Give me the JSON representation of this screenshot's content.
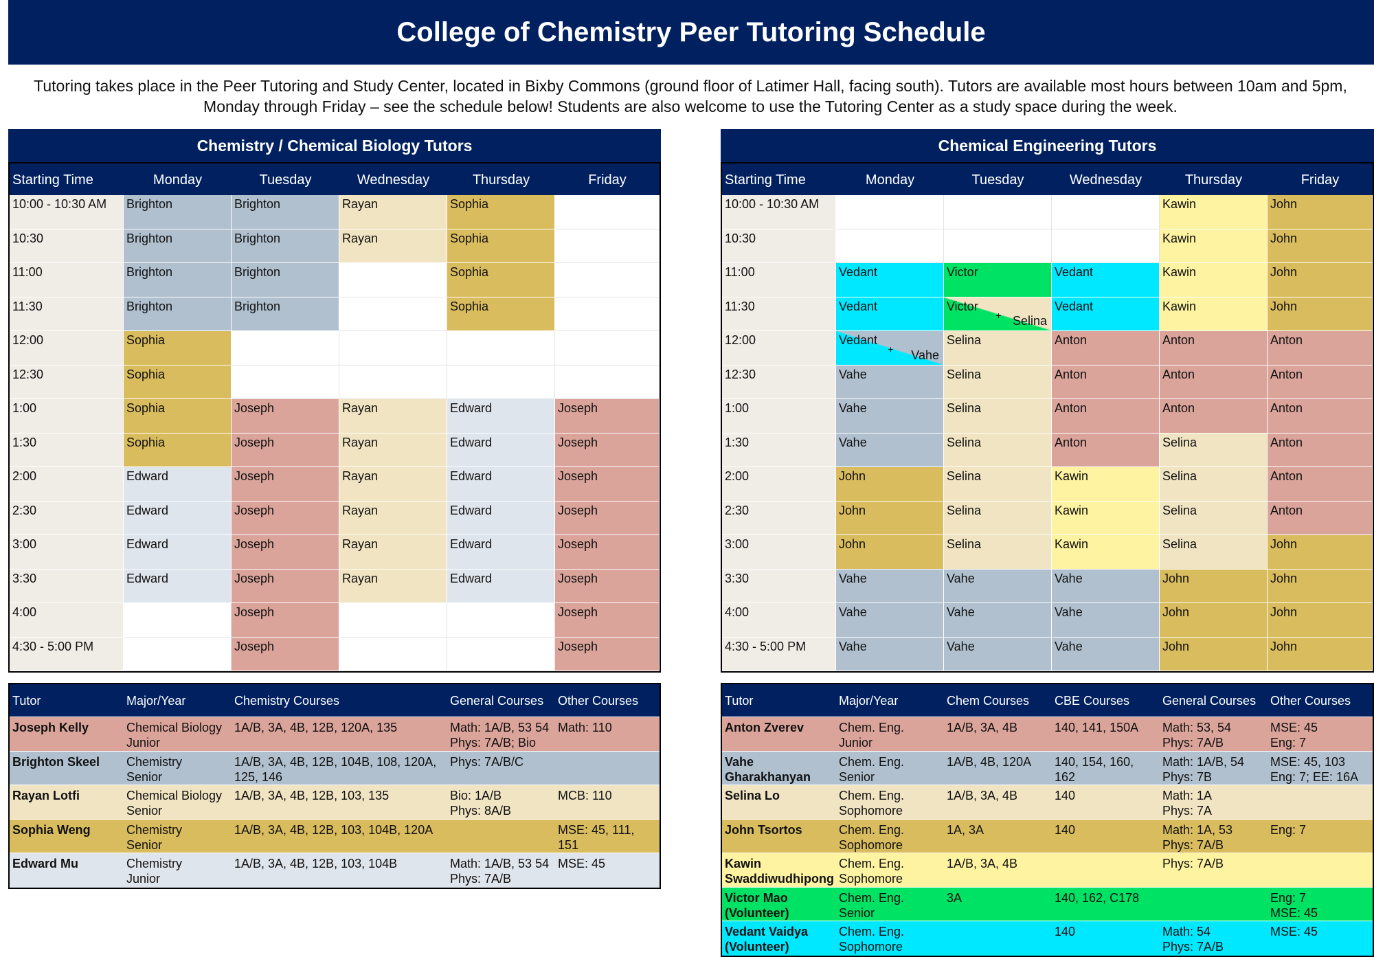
{
  "title": "College of Chemistry Peer Tutoring Schedule",
  "intro": "Tutoring takes place in the Peer Tutoring and Study Center, located in Bixby Commons (ground floor of Latimer Hall, facing south). Tutors are available most hours between 10am and 5pm, Monday through Friday – see the schedule below! Students are also welcome to use the Tutoring Center as a study space during the week.",
  "colors": {
    "Brighton": "#b0c0cf",
    "Rayan": "#f0e4c2",
    "Sophia": "#d9bc5e",
    "Joseph": "#dba49b",
    "Edward": "#dfe5ec",
    "Kawin": "#fdf3a1",
    "John": "#d9bc5e",
    "Vedant": "#00e8ff",
    "Victor": "#00e264",
    "Selina": "#f0e4c2",
    "Anton": "#dba49b",
    "Vahe": "#b0c0cf",
    "header": "#002060"
  },
  "chem": {
    "title": "Chemistry / Chemical Biology Tutors",
    "headers": [
      "Starting Time",
      "Monday",
      "Tuesday",
      "Wednesday",
      "Thursday",
      "Friday"
    ],
    "times": [
      "10:00 - 10:30 AM",
      "10:30",
      "11:00",
      "11:30",
      "12:00",
      "12:30",
      "1:00",
      "1:30",
      "2:00",
      "2:30",
      "3:00",
      "3:30",
      "4:00",
      "4:30 - 5:00 PM"
    ],
    "rows": [
      [
        "Brighton",
        "Brighton",
        "Rayan",
        "Sophia",
        ""
      ],
      [
        "Brighton",
        "Brighton",
        "Rayan",
        "Sophia",
        ""
      ],
      [
        "Brighton",
        "Brighton",
        "",
        "Sophia",
        ""
      ],
      [
        "Brighton",
        "Brighton",
        "",
        "Sophia",
        ""
      ],
      [
        "Sophia",
        "",
        "",
        "",
        ""
      ],
      [
        "Sophia",
        "",
        "",
        "",
        ""
      ],
      [
        "Sophia",
        "Joseph",
        "Rayan",
        "Edward",
        "Joseph"
      ],
      [
        "Sophia",
        "Joseph",
        "Rayan",
        "Edward",
        "Joseph"
      ],
      [
        "Edward",
        "Joseph",
        "Rayan",
        "Edward",
        "Joseph"
      ],
      [
        "Edward",
        "Joseph",
        "Rayan",
        "Edward",
        "Joseph"
      ],
      [
        "Edward",
        "Joseph",
        "Rayan",
        "Edward",
        "Joseph"
      ],
      [
        "Edward",
        "Joseph",
        "Rayan",
        "Edward",
        "Joseph"
      ],
      [
        "",
        "Joseph",
        "",
        "",
        "Joseph"
      ],
      [
        "",
        "Joseph",
        "",
        "",
        "Joseph"
      ]
    ],
    "legend_headers": [
      "Tutor",
      "Major/Year",
      "Chemistry Courses",
      "General Courses",
      "Other Courses"
    ],
    "legend": [
      {
        "key": "Joseph",
        "tutor": "Joseph Kelly",
        "major": "Chemical Biology\nJunior",
        "courses": "1A/B, 3A, 4B, 12B, 120A, 135",
        "general": "Math: 1A/B, 53 54\nPhys: 7A/B; Bio",
        "other": "Math: 110"
      },
      {
        "key": "Brighton",
        "tutor": "Brighton Skeel",
        "major": "Chemistry\nSenior",
        "courses": "1A/B, 3A, 4B, 12B, 104B, 108, 120A,\n125, 146",
        "general": "Phys: 7A/B/C",
        "other": ""
      },
      {
        "key": "Rayan",
        "tutor": "Rayan Lotfi",
        "major": "Chemical Biology\nSenior",
        "courses": "1A/B, 3A, 4B, 12B, 103, 135",
        "general": "Bio: 1A/B\nPhys: 8A/B",
        "other": "MCB: 110"
      },
      {
        "key": "Sophia",
        "tutor": "Sophia Weng",
        "major": "Chemistry\nSenior",
        "courses": "1A/B, 3A, 4B, 12B, 103, 104B, 120A",
        "general": "",
        "other": "MSE: 45, 111, 151"
      },
      {
        "key": "Edward",
        "tutor": "Edward Mu",
        "major": "Chemistry\nJunior",
        "courses": "1A/B, 3A, 4B, 12B, 103, 104B",
        "general": "Math: 1A/B, 53 54\nPhys: 7A/B",
        "other": "MSE: 45"
      }
    ]
  },
  "che": {
    "title": "Chemical Engineering Tutors",
    "headers": [
      "Starting Time",
      "Monday",
      "Tuesday",
      "Wednesday",
      "Thursday",
      "Friday"
    ],
    "times": [
      "10:00 - 10:30 AM",
      "10:30",
      "11:00",
      "11:30",
      "12:00",
      "12:30",
      "1:00",
      "1:30",
      "2:00",
      "2:30",
      "3:00",
      "3:30",
      "4:00",
      "4:30 - 5:00 PM"
    ],
    "rows": [
      [
        "",
        "",
        "",
        "Kawin",
        "John"
      ],
      [
        "",
        "",
        "",
        "Kawin",
        "John"
      ],
      [
        "Vedant",
        "Victor",
        "Vedant",
        "Kawin",
        "John"
      ],
      [
        "Vedant",
        "Victor|Selina",
        "Vedant",
        "Kawin",
        "John"
      ],
      [
        "Vedant|Vahe",
        "Selina",
        "Anton",
        "Anton",
        "Anton"
      ],
      [
        "Vahe",
        "Selina",
        "Anton",
        "Anton",
        "Anton"
      ],
      [
        "Vahe",
        "Selina",
        "Anton",
        "Anton",
        "Anton"
      ],
      [
        "Vahe",
        "Selina",
        "Anton",
        "Selina",
        "Anton"
      ],
      [
        "John",
        "Selina",
        "Kawin",
        "Selina",
        "Anton"
      ],
      [
        "John",
        "Selina",
        "Kawin",
        "Selina",
        "Anton"
      ],
      [
        "John",
        "Selina",
        "Kawin",
        "Selina",
        "John"
      ],
      [
        "Vahe",
        "Vahe",
        "Vahe",
        "John",
        "John"
      ],
      [
        "Vahe",
        "Vahe",
        "Vahe",
        "John",
        "John"
      ],
      [
        "Vahe",
        "Vahe",
        "Vahe",
        "John",
        "John"
      ]
    ],
    "plus": "+",
    "legend_headers": [
      "Tutor",
      "Major/Year",
      "Chem Courses",
      "CBE Courses",
      "General Courses",
      "Other Courses"
    ],
    "legend": [
      {
        "key": "Anton",
        "tutor": "Anton Zverev",
        "major": "Chem. Eng.\nJunior",
        "chem": "1A/B, 3A, 4B",
        "cbe": "140, 141, 150A",
        "general": "Math: 53, 54\nPhys: 7A/B",
        "other": "MSE: 45\nEng: 7"
      },
      {
        "key": "Vahe",
        "tutor": "Vahe\nGharakhanyan",
        "major": "Chem. Eng.\nSenior",
        "chem": "1A/B, 4B, 120A",
        "cbe": "140, 154, 160, 162",
        "general": "Math: 1A/B, 54\nPhys: 7B",
        "other": "MSE: 45, 103\nEng: 7; EE: 16A"
      },
      {
        "key": "Selina",
        "tutor": "Selina Lo",
        "major": "Chem. Eng.\nSophomore",
        "chem": "1A/B, 3A, 4B",
        "cbe": "140",
        "general": "Math: 1A\nPhys: 7A",
        "other": ""
      },
      {
        "key": "John",
        "tutor": "John Tsortos",
        "major": "Chem. Eng.\nSophomore",
        "chem": "1A, 3A",
        "cbe": "140",
        "general": "Math: 1A, 53\nPhys: 7A/B",
        "other": "Eng: 7"
      },
      {
        "key": "Kawin",
        "tutor": "Kawin\nSwaddiwudhipong",
        "major": "Chem. Eng.\nSophomore",
        "chem": "1A/B, 3A, 4B",
        "cbe": "",
        "general": "Phys: 7A/B",
        "other": ""
      },
      {
        "key": "Victor",
        "tutor": "Victor Mao\n(Volunteer)",
        "major": "Chem. Eng.\nSenior",
        "chem": "3A",
        "cbe": "140, 162, C178",
        "general": "",
        "other": "Eng: 7\nMSE: 45"
      },
      {
        "key": "Vedant",
        "tutor": "Vedant Vaidya\n(Volunteer)",
        "major": "Chem. Eng.\nSophomore",
        "chem": "",
        "cbe": "140",
        "general": "Math: 54\nPhys: 7A/B",
        "other": "MSE: 45"
      }
    ]
  }
}
